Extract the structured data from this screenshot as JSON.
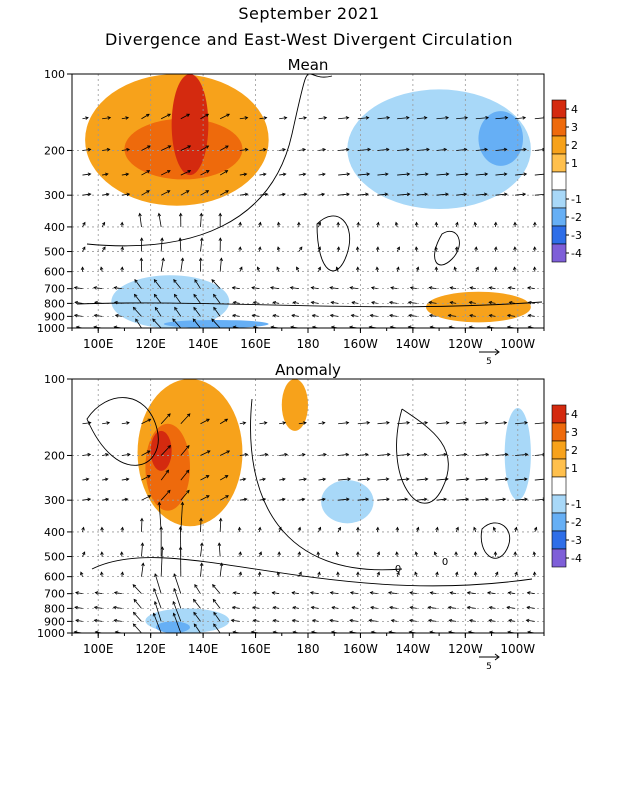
{
  "title": "September 2021",
  "subtitle": "Divergence and East-West Divergent Circulation",
  "colors": {
    "pos1": "#ffc04d",
    "pos2": "#f7a21b",
    "pos3": "#ee6a0c",
    "pos4": "#d42a0f",
    "neg1": "#a8d8f8",
    "neg2": "#66aff5",
    "neg3": "#2e6ee8",
    "neg4": "#7e5fd8"
  },
  "chart_data": [
    {
      "type": "heatmap",
      "title": "Mean",
      "x_ticks": [
        "100E",
        "120E",
        "140E",
        "160E",
        "180",
        "160W",
        "140W",
        "120W",
        "100W"
      ],
      "y_ticks": [
        "100",
        "200",
        "300",
        "400",
        "500",
        "600",
        "700",
        "800",
        "900",
        "1000"
      ],
      "colorbar": [
        "4",
        "3",
        "2",
        "1",
        "-1",
        "-2",
        "-3",
        "-4"
      ],
      "vector_ref": "5",
      "regions": [
        {
          "lon": [
            95,
            165
          ],
          "p": [
            100,
            330
          ],
          "level": 2
        },
        {
          "lon": [
            110,
            155
          ],
          "p": [
            150,
            260
          ],
          "level": 3
        },
        {
          "lon": [
            128,
            142
          ],
          "p": [
            100,
            250
          ],
          "level": 4
        },
        {
          "lon": [
            195,
            265
          ],
          "p": [
            115,
            340
          ],
          "level": -1
        },
        {
          "lon": [
            245,
            262
          ],
          "p": [
            140,
            230
          ],
          "level": -2
        },
        {
          "lon": [
            105,
            150
          ],
          "p": [
            620,
            1000
          ],
          "level": -1
        },
        {
          "lon": [
            125,
            165
          ],
          "p": [
            930,
            1000
          ],
          "level": -2
        },
        {
          "lon": [
            225,
            265
          ],
          "p": [
            720,
            950
          ],
          "level": 2
        }
      ]
    },
    {
      "type": "heatmap",
      "title": "Anomaly",
      "x_ticks": [
        "100E",
        "120E",
        "140E",
        "160E",
        "180",
        "160W",
        "140W",
        "120W",
        "100W"
      ],
      "y_ticks": [
        "100",
        "200",
        "300",
        "400",
        "500",
        "600",
        "700",
        "800",
        "900",
        "1000"
      ],
      "colorbar": [
        "4",
        "3",
        "2",
        "1",
        "-1",
        "-2",
        "-3",
        "-4"
      ],
      "vector_ref": "5",
      "contour_labels": [
        "0",
        "0"
      ],
      "regions": [
        {
          "lon": [
            115,
            155
          ],
          "p": [
            100,
            380
          ],
          "level": 2
        },
        {
          "lon": [
            118,
            135
          ],
          "p": [
            150,
            330
          ],
          "level": 3
        },
        {
          "lon": [
            120,
            128
          ],
          "p": [
            160,
            230
          ],
          "level": 4
        },
        {
          "lon": [
            170,
            180
          ],
          "p": [
            100,
            160
          ],
          "level": 2
        },
        {
          "lon": [
            185,
            205
          ],
          "p": [
            250,
            370
          ],
          "level": -1
        },
        {
          "lon": [
            255,
            265
          ],
          "p": [
            130,
            300
          ],
          "level": -1
        },
        {
          "lon": [
            118,
            150
          ],
          "p": [
            800,
            1000
          ],
          "level": -1
        },
        {
          "lon": [
            122,
            135
          ],
          "p": [
            900,
            1000
          ],
          "level": -2
        }
      ]
    }
  ]
}
